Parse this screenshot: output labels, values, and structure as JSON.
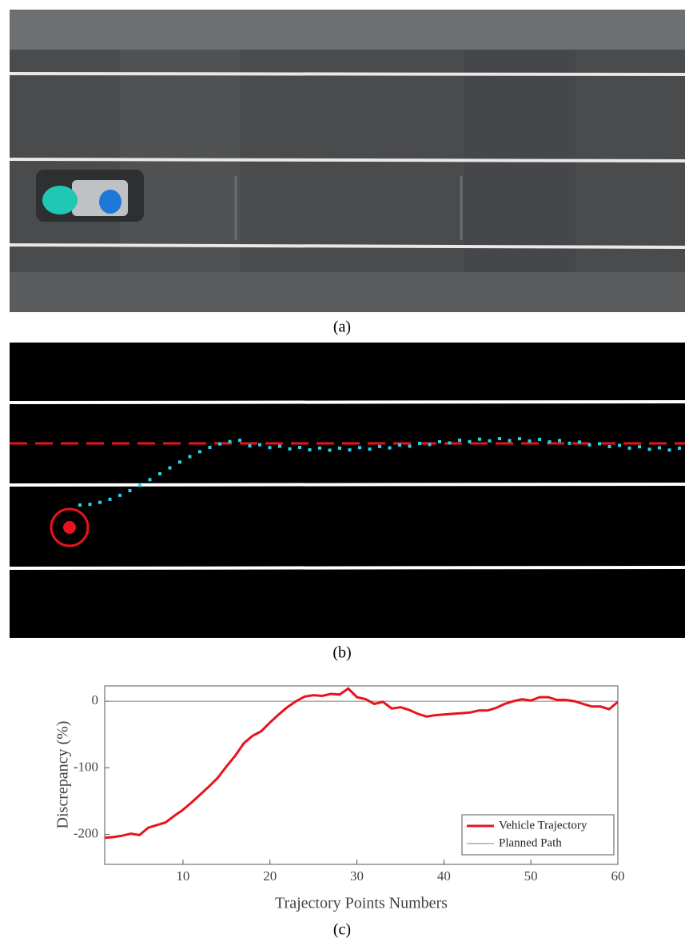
{
  "panels": {
    "a": "(a)",
    "b": "(b)",
    "c": "(c)"
  },
  "chart_data": {
    "type": "line",
    "x_label": "Trajectory Points Numbers",
    "y_label": "Discrepancy (%)",
    "x": [
      1,
      2,
      3,
      4,
      5,
      6,
      7,
      8,
      9,
      10,
      11,
      12,
      13,
      14,
      15,
      16,
      17,
      18,
      19,
      20,
      21,
      22,
      23,
      24,
      25,
      26,
      27,
      28,
      29,
      30,
      31,
      32,
      33,
      34,
      35,
      36,
      37,
      38,
      39,
      40,
      41,
      42,
      43,
      44,
      45,
      46,
      47,
      48,
      49,
      50,
      51,
      52,
      53,
      54,
      55,
      56,
      57,
      58,
      59,
      60
    ],
    "series": [
      {
        "name": "Vehicle Trajectory",
        "color": "#e8141c",
        "width": 3,
        "values": [
          -205,
          -204,
          -202,
          -199,
          -201,
          -190,
          -186,
          -182,
          -172,
          -163,
          -152,
          -140,
          -128,
          -115,
          -98,
          -82,
          -63,
          -52,
          -45,
          -32,
          -20,
          -9,
          0,
          7,
          9,
          8,
          11,
          10,
          19,
          6,
          3,
          -4,
          -1,
          -11,
          -9,
          -13,
          -19,
          -23,
          -21,
          -20,
          -19,
          -18,
          -17,
          -14,
          -14,
          -10,
          -4,
          0,
          3,
          1,
          6,
          6,
          2,
          2,
          0,
          -4,
          -8,
          -8,
          -12,
          -1
        ]
      },
      {
        "name": "Planned Path",
        "color": "#808080",
        "width": 1,
        "values": [
          0,
          0,
          0,
          0,
          0,
          0,
          0,
          0,
          0,
          0,
          0,
          0,
          0,
          0,
          0,
          0,
          0,
          0,
          0,
          0,
          0,
          0,
          0,
          0,
          0,
          0,
          0,
          0,
          0,
          0,
          0,
          0,
          0,
          0,
          0,
          0,
          0,
          0,
          0,
          0,
          0,
          0,
          0,
          0,
          0,
          0,
          0,
          0,
          0,
          0,
          0,
          0,
          0,
          0,
          0,
          0,
          0,
          0,
          0,
          0
        ]
      }
    ],
    "xlim": [
      1,
      60
    ],
    "xticks": [
      10,
      20,
      30,
      40,
      50,
      60
    ],
    "ylim": [
      -245,
      23
    ],
    "yticks": [
      -200,
      -100,
      0
    ],
    "legend": "lower-right"
  }
}
